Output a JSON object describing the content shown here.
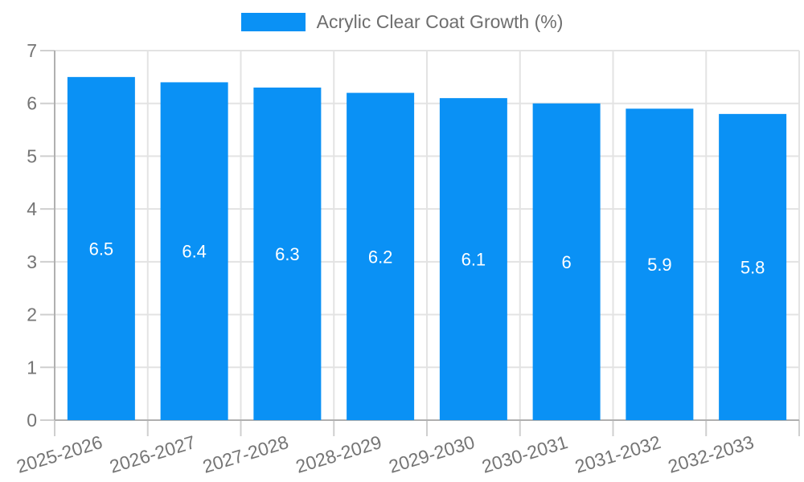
{
  "legend": {
    "label": "Acrylic Clear Coat Growth (%)"
  },
  "colors": {
    "bar": "#0a91f5",
    "grid": "#e3e3e3",
    "axis": "#b0b0b0",
    "tick": "#cfcfcf",
    "axis_label": "#757575",
    "legend_text": "#6e6e6e",
    "value_label": "#ffffff"
  },
  "chart_data": {
    "type": "bar",
    "title": "",
    "xlabel": "",
    "ylabel": "",
    "categories": [
      "2025-2026",
      "2026-2027",
      "2027-2028",
      "2028-2029",
      "2029-2030",
      "2030-2031",
      "2031-2032",
      "2032-2033"
    ],
    "series": [
      {
        "name": "Acrylic Clear Coat Growth (%)",
        "values": [
          6.5,
          6.4,
          6.3,
          6.2,
          6.1,
          6,
          5.9,
          5.8
        ]
      }
    ],
    "value_labels": [
      "6.5",
      "6.4",
      "6.3",
      "6.2",
      "6.1",
      "6",
      "5.9",
      "5.8"
    ],
    "ylim": [
      0,
      7
    ],
    "y_ticks": [
      "0",
      "1",
      "2",
      "3",
      "4",
      "5",
      "6",
      "7"
    ],
    "grid": true,
    "legend_position": "top"
  }
}
